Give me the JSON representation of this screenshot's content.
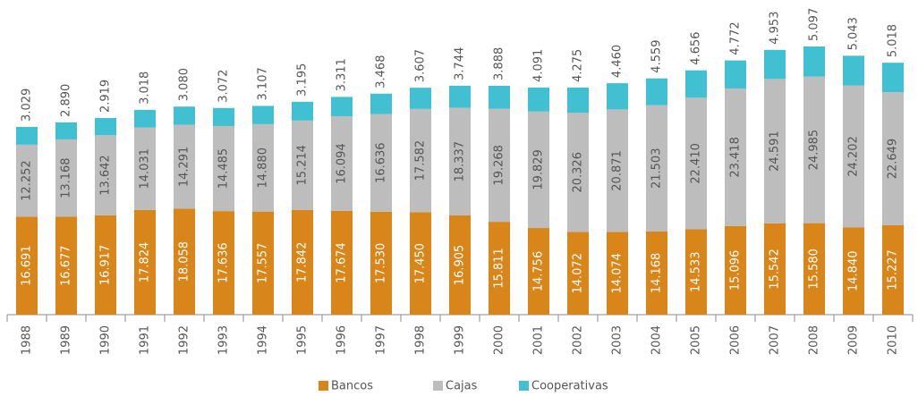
{
  "chart_data": {
    "type": "stacked-bar",
    "categories": [
      "1988",
      "1989",
      "1990",
      "1991",
      "1992",
      "1993",
      "1994",
      "1995",
      "1996",
      "1997",
      "1998",
      "1999",
      "2000",
      "2001",
      "2002",
      "2003",
      "2004",
      "2005",
      "2006",
      "2007",
      "2008",
      "2009",
      "2010"
    ],
    "series": [
      {
        "name": "Bancos",
        "color": "#d8861a",
        "values": [
          16691,
          16677,
          16917,
          17824,
          18058,
          17636,
          17557,
          17842,
          17674,
          17530,
          17450,
          16905,
          15811,
          14756,
          14072,
          14074,
          14168,
          14533,
          15096,
          15542,
          15580,
          14840,
          15227
        ],
        "value_labels": [
          "16.691",
          "16.677",
          "16.917",
          "17.824",
          "18.058",
          "17.636",
          "17.557",
          "17.842",
          "17.674",
          "17.530",
          "17.450",
          "16.905",
          "15.811",
          "14.756",
          "14.072",
          "14.074",
          "14.168",
          "14.533",
          "15.096",
          "15.542",
          "15.580",
          "14.840",
          "15.227"
        ]
      },
      {
        "name": "Cajas",
        "color": "#bdbdbd",
        "values": [
          12252,
          13168,
          13642,
          14031,
          14291,
          14485,
          14880,
          15214,
          16094,
          16636,
          17582,
          18337,
          19268,
          19829,
          20326,
          20871,
          21503,
          22410,
          23418,
          24591,
          24985,
          24202,
          22649
        ],
        "value_labels": [
          "12.252",
          "13.168",
          "13.642",
          "14.031",
          "14.291",
          "14.485",
          "14.880",
          "15.214",
          "16.094",
          "16.636",
          "17.582",
          "18.337",
          "19.268",
          "19.829",
          "20.326",
          "20.871",
          "21.503",
          "22.410",
          "23.418",
          "24.591",
          "24.985",
          "24.202",
          "22.649"
        ]
      },
      {
        "name": "Cooperativas",
        "color": "#40c0d0",
        "values": [
          3029,
          2890,
          2919,
          3018,
          3080,
          3072,
          3107,
          3195,
          3311,
          3468,
          3607,
          3744,
          3888,
          4091,
          4275,
          4460,
          4559,
          4656,
          4772,
          4953,
          5097,
          5043,
          5018
        ],
        "value_labels": [
          "3.029",
          "2.890",
          "2.919",
          "3.018",
          "3.080",
          "3.072",
          "3.107",
          "3.195",
          "3.311",
          "3.468",
          "3.607",
          "3.744",
          "3.888",
          "4.091",
          "4.275",
          "4.460",
          "4.559",
          "4.656",
          "4.772",
          "4.953",
          "5.097",
          "5.043",
          "5.018"
        ]
      }
    ],
    "legend": "bottom"
  }
}
